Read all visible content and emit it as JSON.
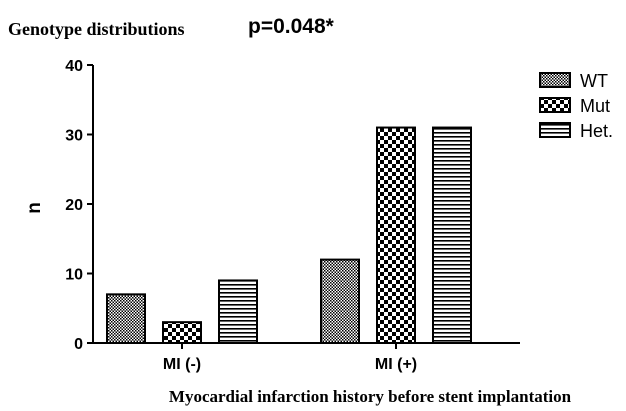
{
  "chart_data": {
    "type": "bar",
    "title": "Genotype distributions",
    "subtitle": "p=0.048*",
    "xlabel": "Myocardial infarction history before stent implantation",
    "ylabel": "n",
    "ylim": [
      0,
      40
    ],
    "yticks": [
      "0",
      "10",
      "20",
      "30",
      "40"
    ],
    "categories": [
      "MI (-)",
      "MI (+)"
    ],
    "series": [
      {
        "name": "WT",
        "values": [
          7,
          12
        ],
        "pattern": "fine-dots"
      },
      {
        "name": "Mut",
        "values": [
          3,
          31
        ],
        "pattern": "checker"
      },
      {
        "name": "Het.",
        "values": [
          9,
          31
        ],
        "pattern": "horizontal-stripes"
      }
    ],
    "legend_position": "top-right",
    "grid": false,
    "colors": {
      "ink": "#000000",
      "background": "#ffffff"
    }
  }
}
